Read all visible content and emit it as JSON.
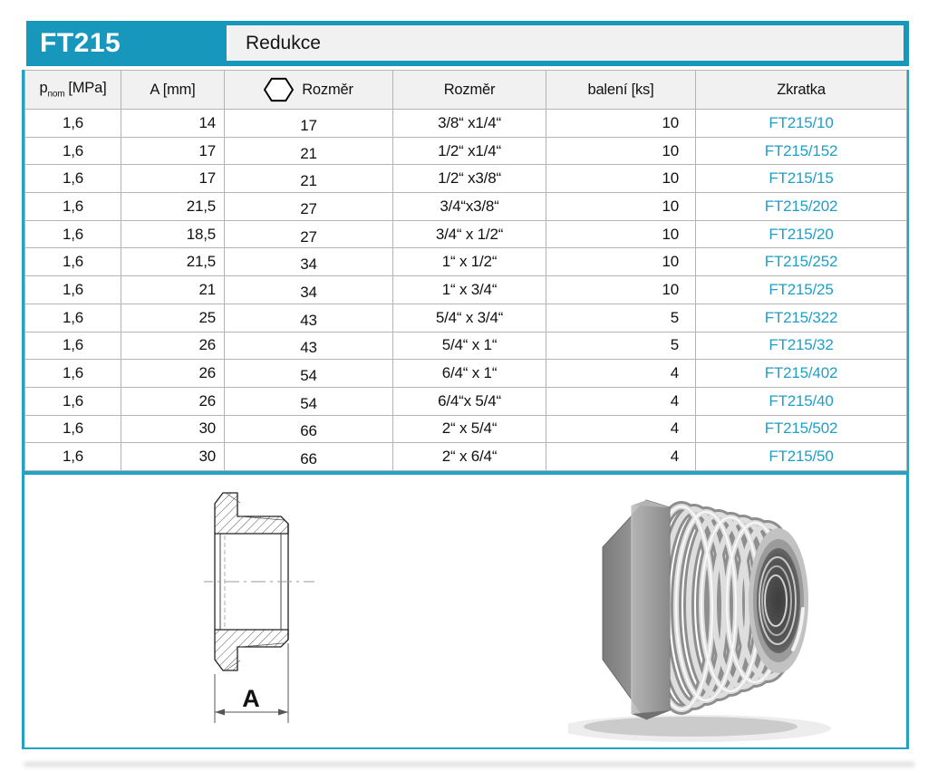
{
  "page": {
    "product_code": "FT215",
    "product_name": "Redukce"
  },
  "table": {
    "columns": {
      "pnom": {
        "main": "p",
        "sub": "nom",
        "unit": "[MPa]"
      },
      "a": "A [mm]",
      "hex": "Rozměr",
      "rozmer": "Rozměr",
      "baleni": "balení [ks]",
      "zkratka": "Zkratka"
    },
    "rows": [
      {
        "pnom": "1,6",
        "a": "14",
        "hex": "17",
        "rozmer": "3/8“ x1/4“",
        "baleni": "10",
        "zkratka": "FT215/10"
      },
      {
        "pnom": "1,6",
        "a": "17",
        "hex": "21",
        "rozmer": "1/2“ x1/4“",
        "baleni": "10",
        "zkratka": "FT215/152"
      },
      {
        "pnom": "1,6",
        "a": "17",
        "hex": "21",
        "rozmer": "1/2“ x3/8“",
        "baleni": "10",
        "zkratka": "FT215/15"
      },
      {
        "pnom": "1,6",
        "a": "21,5",
        "hex": "27",
        "rozmer": "3/4“x3/8“",
        "baleni": "10",
        "zkratka": "FT215/202"
      },
      {
        "pnom": "1,6",
        "a": "18,5",
        "hex": "27",
        "rozmer": "3/4“ x 1/2“",
        "baleni": "10",
        "zkratka": "FT215/20"
      },
      {
        "pnom": "1,6",
        "a": "21,5",
        "hex": "34",
        "rozmer": "1“ x 1/2“",
        "baleni": "10",
        "zkratka": "FT215/252"
      },
      {
        "pnom": "1,6",
        "a": "21",
        "hex": "34",
        "rozmer": "1“ x 3/4“",
        "baleni": "10",
        "zkratka": "FT215/25"
      },
      {
        "pnom": "1,6",
        "a": "25",
        "hex": "43",
        "rozmer": "5/4“ x 3/4“",
        "baleni": "5",
        "zkratka": "FT215/322"
      },
      {
        "pnom": "1,6",
        "a": "26",
        "hex": "43",
        "rozmer": "5/4“ x 1“",
        "baleni": "5",
        "zkratka": "FT215/32"
      },
      {
        "pnom": "1,6",
        "a": "26",
        "hex": "54",
        "rozmer": "6/4“ x 1“",
        "baleni": "4",
        "zkratka": "FT215/402"
      },
      {
        "pnom": "1,6",
        "a": "26",
        "hex": "54",
        "rozmer": "6/4“x 5/4“",
        "baleni": "4",
        "zkratka": "FT215/40"
      },
      {
        "pnom": "1,6",
        "a": "30",
        "hex": "66",
        "rozmer": "2“ x 5/4“",
        "baleni": "4",
        "zkratka": "FT215/502"
      },
      {
        "pnom": "1,6",
        "a": "30",
        "hex": "66",
        "rozmer": "2“ x 6/4“",
        "baleni": "4",
        "zkratka": "FT215/50"
      }
    ]
  },
  "drawing": {
    "dimension_label": "A"
  },
  "icons": {
    "size_across_flats": "hexagon-icon"
  },
  "colors": {
    "accent": "#1897bd",
    "frame_border": "#23a3c4",
    "link": "#1f9ec6",
    "grid": "#b4b4b4",
    "header_bg": "#f1f1f1"
  }
}
